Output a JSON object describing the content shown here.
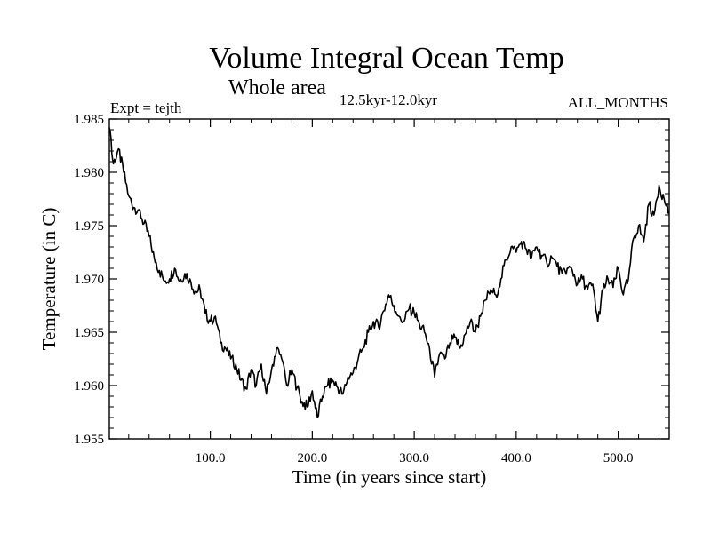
{
  "chart_data": {
    "type": "line",
    "title": "Volume Integral Ocean Temp",
    "subtitle": "Whole area",
    "period_label": "12.5kyr-12.0kyr",
    "expt_label": "Expt = tejth",
    "months_label": "ALL_MONTHS",
    "xlabel": "Time (in years since start)",
    "ylabel": "Temperature (in C)",
    "xlim": [
      1,
      550
    ],
    "ylim": [
      1.955,
      1.985
    ],
    "xticks": [
      {
        "value": 100,
        "label": "100.0"
      },
      {
        "value": 200,
        "label": "200.0"
      },
      {
        "value": 300,
        "label": "300.0"
      },
      {
        "value": 400,
        "label": "400.0"
      },
      {
        "value": 500,
        "label": "500.0"
      }
    ],
    "yticks": [
      {
        "value": 1.955,
        "label": "1.955"
      },
      {
        "value": 1.96,
        "label": "1.960"
      },
      {
        "value": 1.965,
        "label": "1.965"
      },
      {
        "value": 1.97,
        "label": "1.970"
      },
      {
        "value": 1.975,
        "label": "1.975"
      },
      {
        "value": 1.98,
        "label": "1.980"
      },
      {
        "value": 1.985,
        "label": "1.985"
      }
    ],
    "grid": false,
    "series": [
      {
        "name": "tejth",
        "x": [
          1,
          5,
          10,
          15,
          20,
          25,
          30,
          35,
          40,
          45,
          50,
          55,
          60,
          65,
          70,
          75,
          80,
          85,
          90,
          95,
          100,
          105,
          110,
          115,
          120,
          125,
          130,
          135,
          140,
          145,
          150,
          155,
          160,
          165,
          170,
          175,
          180,
          185,
          190,
          195,
          200,
          205,
          210,
          215,
          220,
          225,
          230,
          235,
          240,
          245,
          250,
          255,
          260,
          265,
          270,
          275,
          280,
          285,
          290,
          295,
          300,
          305,
          310,
          315,
          320,
          325,
          330,
          335,
          340,
          345,
          350,
          355,
          360,
          365,
          370,
          375,
          380,
          385,
          390,
          395,
          400,
          405,
          410,
          415,
          420,
          425,
          430,
          435,
          440,
          445,
          450,
          455,
          460,
          465,
          470,
          475,
          480,
          485,
          490,
          495,
          500,
          505,
          510,
          515,
          520,
          525,
          530,
          535,
          540,
          545,
          550
        ],
        "values": [
          1.9842,
          1.9808,
          1.9822,
          1.98,
          1.9778,
          1.9767,
          1.9765,
          1.9752,
          1.974,
          1.972,
          1.9708,
          1.9698,
          1.97,
          1.971,
          1.9698,
          1.9705,
          1.97,
          1.9688,
          1.969,
          1.9668,
          1.966,
          1.9665,
          1.964,
          1.9635,
          1.9625,
          1.962,
          1.9605,
          1.9597,
          1.9615,
          1.96,
          1.962,
          1.9592,
          1.9615,
          1.9635,
          1.9625,
          1.96,
          1.9615,
          1.9598,
          1.9585,
          1.958,
          1.9595,
          1.957,
          1.959,
          1.96,
          1.9605,
          1.9598,
          1.9592,
          1.9608,
          1.9612,
          1.9625,
          1.9635,
          1.965,
          1.966,
          1.9655,
          1.967,
          1.9685,
          1.9675,
          1.9665,
          1.966,
          1.9672,
          1.9668,
          1.9658,
          1.965,
          1.9635,
          1.9608,
          1.963,
          1.9625,
          1.964,
          1.9645,
          1.9635,
          1.9648,
          1.966,
          1.965,
          1.9665,
          1.968,
          1.969,
          1.9685,
          1.97,
          1.9718,
          1.973,
          1.9725,
          1.9735,
          1.9728,
          1.972,
          1.973,
          1.9722,
          1.9715,
          1.972,
          1.9712,
          1.9705,
          1.971,
          1.9708,
          1.9695,
          1.97,
          1.969,
          1.9695,
          1.966,
          1.969,
          1.97,
          1.9692,
          1.971,
          1.9685,
          1.97,
          1.9738,
          1.975,
          1.9735,
          1.977,
          1.976,
          1.9788,
          1.9775,
          1.9762
        ]
      }
    ]
  }
}
